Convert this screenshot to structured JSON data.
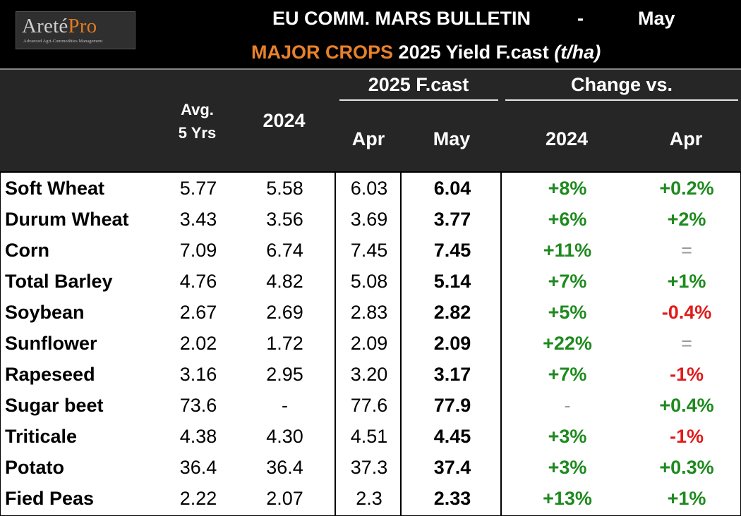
{
  "logo": {
    "brand_main": "Areté",
    "brand_accent": "Pro",
    "tagline": "Advanced Agri-Commodities Management"
  },
  "title": {
    "line1": "EU COMM. MARS BULLETIN",
    "separator": "-",
    "month": "May",
    "major": "MAJOR CROPS",
    "subtitle": "2025 Yield F.cast",
    "unit": "(t/ha)"
  },
  "headers": {
    "avg_line1": "Avg.",
    "avg_line2": "5 Yrs",
    "y2024": "2024",
    "fcast_group": "2025 F.cast",
    "apr": "Apr",
    "may": "May",
    "change_group": "Change vs.",
    "ch_2024": "2024",
    "ch_apr": "Apr"
  },
  "colors": {
    "positive": "#1e8a1e",
    "negative": "#e01b1b",
    "accent": "#e8812a"
  },
  "rows": [
    {
      "crop": "Soft Wheat",
      "avg": "5.77",
      "y2024": "5.58",
      "apr": "6.03",
      "may": "6.04",
      "ch2024": "+8%",
      "chapr": "+0.2%"
    },
    {
      "crop": "Durum Wheat",
      "avg": "3.43",
      "y2024": "3.56",
      "apr": "3.69",
      "may": "3.77",
      "ch2024": "+6%",
      "chapr": "+2%"
    },
    {
      "crop": "Corn",
      "avg": "7.09",
      "y2024": "6.74",
      "apr": "7.45",
      "may": "7.45",
      "ch2024": "+11%",
      "chapr": "="
    },
    {
      "crop": "Total Barley",
      "avg": "4.76",
      "y2024": "4.82",
      "apr": "5.08",
      "may": "5.14",
      "ch2024": "+7%",
      "chapr": "+1%"
    },
    {
      "crop": "Soybean",
      "avg": "2.67",
      "y2024": "2.69",
      "apr": "2.83",
      "may": "2.82",
      "ch2024": "+5%",
      "chapr": "-0.4%"
    },
    {
      "crop": "Sunflower",
      "avg": "2.02",
      "y2024": "1.72",
      "apr": "2.09",
      "may": "2.09",
      "ch2024": "+22%",
      "chapr": "="
    },
    {
      "crop": "Rapeseed",
      "avg": "3.16",
      "y2024": "2.95",
      "apr": "3.20",
      "may": "3.17",
      "ch2024": "+7%",
      "chapr": "-1%"
    },
    {
      "crop": "Sugar beet",
      "avg": "73.6",
      "y2024": "-",
      "apr": "77.6",
      "may": "77.9",
      "ch2024": "-",
      "chapr": "+0.4%"
    },
    {
      "crop": "Triticale",
      "avg": "4.38",
      "y2024": "4.30",
      "apr": "4.51",
      "may": "4.45",
      "ch2024": "+3%",
      "chapr": "-1%"
    },
    {
      "crop": "Potato",
      "avg": "36.4",
      "y2024": "36.4",
      "apr": "37.3",
      "may": "37.4",
      "ch2024": "+3%",
      "chapr": "+0.3%"
    },
    {
      "crop": "Fied Peas",
      "avg": "2.22",
      "y2024": "2.07",
      "apr": "2.3",
      "may": "2.33",
      "ch2024": "+13%",
      "chapr": "+1%"
    }
  ]
}
